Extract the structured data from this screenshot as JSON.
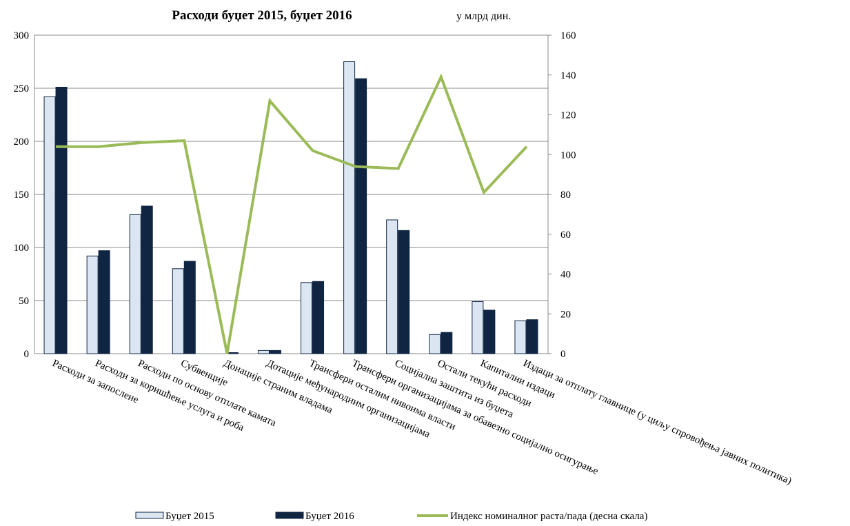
{
  "chart_data": {
    "type": "bar_line",
    "title": "Расходи буџет 2015, буџет 2016",
    "subtitle": "у млрд дин.",
    "categories": [
      "Расходи за запослене",
      "Расходи за коришћење услуга и роба",
      "Расходи по основу отплате камата",
      "Субвенције",
      "Донације страним владама",
      "Дотације међународним организацијама",
      "Трансфери осталим нивоима власти",
      "Трансфери организацијама за обавезно социјално осигурање",
      "Социјална заштита из буџета",
      "Остали текући расходи",
      "Капитални издаци",
      "Издаци за отплату главнице (у циљу спровођења јавних политика)"
    ],
    "series": [
      {
        "name": "Буџет 2015",
        "type": "bar",
        "color": "#dce6f2",
        "values": [
          242,
          92,
          131,
          80,
          0,
          3,
          67,
          275,
          126,
          18,
          49,
          31
        ]
      },
      {
        "name": "Буџет 2016",
        "type": "bar",
        "color": "#0f2541",
        "values": [
          251,
          97,
          139,
          87,
          1,
          3,
          68,
          259,
          116,
          20,
          41,
          32
        ]
      },
      {
        "name": "Индекс номиналног раста/пада (десна скала)",
        "type": "line",
        "axis": "y2",
        "color": "#9bbb59",
        "values": [
          104,
          104,
          106,
          107,
          0,
          127,
          102,
          94,
          93,
          139,
          81,
          104
        ]
      }
    ],
    "ylim": [
      0,
      300
    ],
    "yticks": [
      0,
      50,
      100,
      150,
      200,
      250,
      300
    ],
    "y2lim": [
      0,
      160
    ],
    "y2ticks": [
      0,
      20,
      40,
      60,
      80,
      100,
      120,
      140,
      160
    ],
    "grid": true,
    "legend": "bottom"
  }
}
